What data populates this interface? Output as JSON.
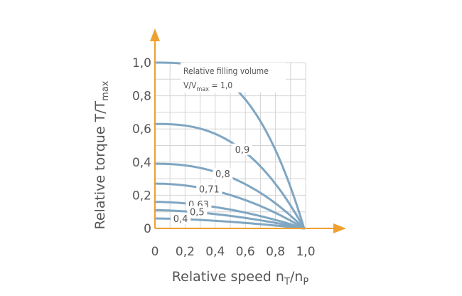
{
  "chart_data": {
    "type": "line",
    "x_ticks": [
      "0",
      "0,2",
      "0,4",
      "0,6",
      "0,8",
      "1,0"
    ],
    "y_ticks": [
      "0",
      "0,2",
      "0,4",
      "0,6",
      "0,8",
      "1,0"
    ],
    "xlim": [
      0,
      1.0
    ],
    "ylim": [
      0,
      1.0
    ],
    "grid": true,
    "xlabel": {
      "main": "Relative speed n",
      "sub1": "T",
      "mid": "/n",
      "sub2": "P"
    },
    "ylabel": {
      "main": "Relative torque T/T",
      "sub": "max"
    },
    "annotation": {
      "line1": "Relative filling volume",
      "line2_main": "V/V",
      "line2_sub": "max",
      "line2_end": " = 1,0"
    },
    "colors": {
      "curve": "#7fa6c2",
      "axis": "#f0a030",
      "grid": "#d4d4d4",
      "text": "#555555"
    },
    "series": [
      {
        "label": "1,0",
        "y0": 1.0,
        "x_end": 0.99,
        "exponent": 3.0
      },
      {
        "label": "0,9",
        "y0": 0.63,
        "x_end": 0.99,
        "exponent": 2.6
      },
      {
        "label": "0,8",
        "y0": 0.39,
        "x_end": 0.99,
        "exponent": 2.3
      },
      {
        "label": "0,71",
        "y0": 0.27,
        "x_end": 0.99,
        "exponent": 2.0
      },
      {
        "label": "0,63",
        "y0": 0.16,
        "x_end": 0.99,
        "exponent": 1.8
      },
      {
        "label": "0,5",
        "y0": 0.11,
        "x_end": 0.99,
        "exponent": 1.7
      },
      {
        "label": "0,4",
        "y0": 0.06,
        "x_end": 0.99,
        "exponent": 1.6
      }
    ]
  }
}
